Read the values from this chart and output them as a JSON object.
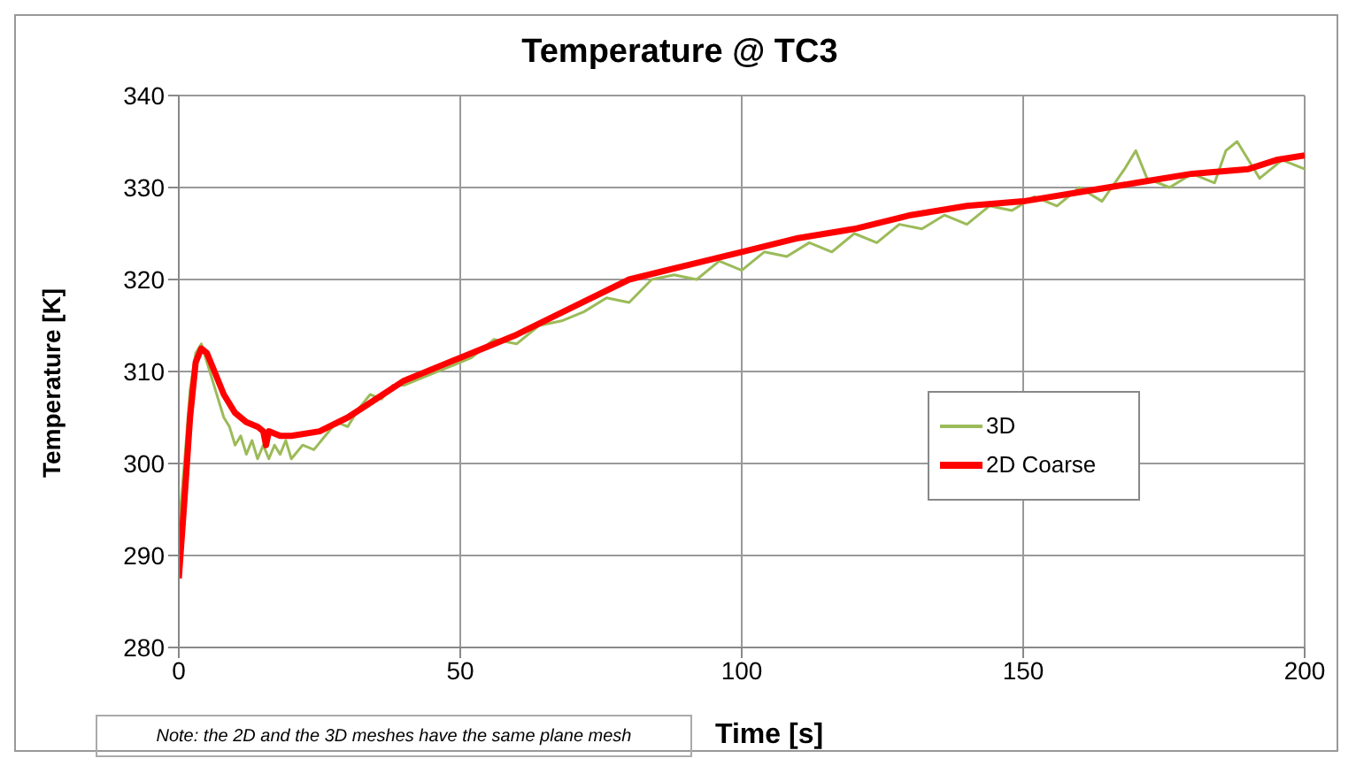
{
  "chart_data": {
    "type": "line",
    "title": "Temperature @ TC3",
    "xlabel": "Time [s]",
    "ylabel": "Temperature [K]",
    "annotations": [
      "Note: the 2D and the 3D meshes have the same plane mesh"
    ],
    "xlim": [
      0,
      200
    ],
    "xticks": [
      0,
      50,
      100,
      150,
      200
    ],
    "ylim": [
      280,
      340
    ],
    "yticks": [
      280,
      290,
      300,
      310,
      320,
      330,
      340
    ],
    "grid": true,
    "legend": "right",
    "marker": "none",
    "line_style": "solid",
    "series": [
      {
        "name": "3D",
        "color": "#9bbb59",
        "x": [
          0,
          1,
          2,
          3,
          4,
          5,
          6,
          7,
          8,
          9,
          10,
          11,
          12,
          13,
          14,
          15,
          16,
          17,
          18,
          19,
          20,
          22,
          24,
          26,
          28,
          30,
          32,
          34,
          36,
          38,
          40,
          44,
          48,
          52,
          56,
          60,
          64,
          68,
          72,
          76,
          80,
          84,
          88,
          92,
          96,
          100,
          104,
          108,
          112,
          116,
          120,
          124,
          128,
          132,
          136,
          140,
          144,
          148,
          152,
          156,
          160,
          164,
          168,
          170,
          172,
          176,
          180,
          184,
          186,
          188,
          190,
          192,
          196,
          200
        ],
        "values": [
          293,
          300,
          308,
          312,
          313,
          311,
          309,
          307,
          305,
          304,
          302,
          303,
          301,
          302.5,
          300.5,
          302,
          300.5,
          302,
          301,
          302.5,
          300.5,
          302,
          301.5,
          303,
          304.5,
          304,
          306,
          307.5,
          307,
          308.5,
          308.5,
          309.5,
          310.5,
          311.5,
          313.5,
          313,
          315,
          315.5,
          316.5,
          318,
          317.5,
          320,
          320.5,
          320,
          322,
          321,
          323,
          322.5,
          324,
          323,
          325,
          324,
          326,
          325.5,
          327,
          326,
          328,
          327.5,
          329,
          328,
          330,
          328.5,
          332,
          334,
          331,
          330,
          331.5,
          330.5,
          334,
          335,
          333,
          331,
          333,
          332
        ]
      },
      {
        "name": "2D Coarse",
        "color": "#ff0000",
        "x": [
          0,
          1,
          2,
          3,
          4,
          5,
          6,
          8,
          10,
          12,
          14,
          15,
          15.5,
          16,
          18,
          20,
          25,
          30,
          35,
          40,
          50,
          60,
          70,
          80,
          90,
          100,
          110,
          120,
          130,
          140,
          150,
          160,
          170,
          180,
          190,
          195,
          200
        ],
        "values": [
          287.5,
          296,
          305,
          311,
          312.5,
          312,
          310.5,
          307.5,
          305.5,
          304.5,
          304,
          303.5,
          302,
          303.5,
          303,
          303,
          303.5,
          305,
          307,
          309,
          311.5,
          314,
          317,
          320,
          321.5,
          323,
          324.5,
          325.5,
          327,
          328,
          328.5,
          329.5,
          330.5,
          331.5,
          332,
          333,
          333.5
        ]
      }
    ]
  }
}
